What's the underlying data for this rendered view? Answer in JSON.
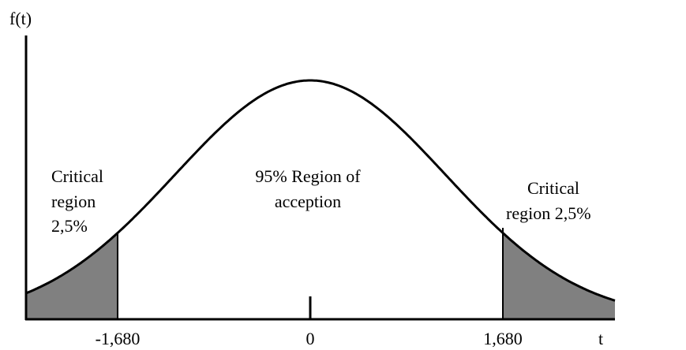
{
  "axes": {
    "y_label": "f(t)",
    "x_label": "t"
  },
  "ticks": [
    "-1,680",
    "0",
    "1,680"
  ],
  "regions": [
    {
      "lines": [
        "Critical",
        "region",
        "2,5%"
      ]
    },
    {
      "lines": [
        "95% Region of",
        "acception"
      ]
    },
    {
      "lines": [
        "Critical",
        "region 2,5%"
      ]
    }
  ]
}
